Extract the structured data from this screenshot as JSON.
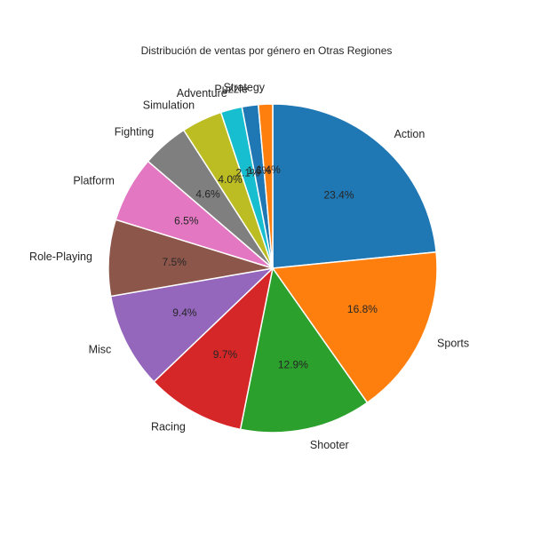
{
  "chart_data": {
    "type": "pie",
    "title": "Distribución de ventas por género en Otras Regiones",
    "start_angle_deg": 90,
    "direction": "clockwise",
    "slices": [
      {
        "label": "Action",
        "value": 23.4,
        "pct_text": "23.4%",
        "color": "#1f77b4"
      },
      {
        "label": "Sports",
        "value": 16.8,
        "pct_text": "16.8%",
        "color": "#ff7f0e"
      },
      {
        "label": "Shooter",
        "value": 12.9,
        "pct_text": "12.9%",
        "color": "#2ca02c"
      },
      {
        "label": "Racing",
        "value": 9.7,
        "pct_text": "9.7%",
        "color": "#d62728"
      },
      {
        "label": "Misc",
        "value": 9.4,
        "pct_text": "9.4%",
        "color": "#9467bd"
      },
      {
        "label": "Role-Playing",
        "value": 7.5,
        "pct_text": "7.5%",
        "color": "#8c564b"
      },
      {
        "label": "Platform",
        "value": 6.5,
        "pct_text": "6.5%",
        "color": "#e377c2"
      },
      {
        "label": "Fighting",
        "value": 4.6,
        "pct_text": "4.6%",
        "color": "#7f7f7f"
      },
      {
        "label": "Simulation",
        "value": 4.0,
        "pct_text": "4.0%",
        "color": "#bcbd22"
      },
      {
        "label": "Adventure",
        "value": 2.1,
        "pct_text": "2.1%",
        "color": "#17becf"
      },
      {
        "label": "Puzzle",
        "value": 1.6,
        "pct_text": "1.6%",
        "color": "#1f77b4"
      },
      {
        "label": "Strategy",
        "value": 1.4,
        "pct_text": "1.4%",
        "color": "#ff7f0e"
      }
    ]
  }
}
